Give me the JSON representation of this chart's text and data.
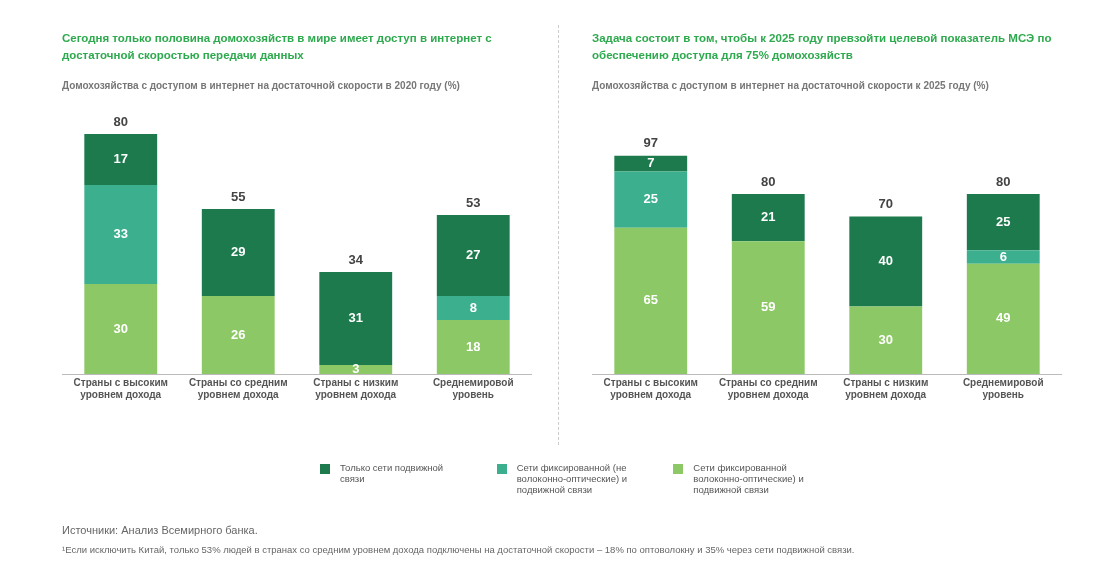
{
  "chart_data": [
    {
      "type": "bar",
      "title": "Сегодня только половина домохозяйств в мире имеет доступ в интернет с достаточной скоростью передачи данных",
      "subtitle": "Домохозяйства с доступом в интернет на достаточной скорости в 2020 году (%)",
      "categories": [
        "Страны с высоким уровнем дохода",
        "Страны со средним уровнем дохода",
        "Страны с низким уровнем дохода",
        "Среднемировой уровень"
      ],
      "stacked": true,
      "data_labels": true,
      "legend": "bottom",
      "grid": false,
      "series": [
        {
          "name": "Сети фиксированной волоконно-оптические) и подвижной связи",
          "color": "#8cc865",
          "values": [
            30,
            26,
            3,
            18
          ]
        },
        {
          "name": "Сети фиксированной (не волоконно-оптические) и подвижной связи",
          "color": "#3caf8e",
          "values": [
            33,
            null,
            null,
            8
          ]
        },
        {
          "name": "Только сети подвижной связи",
          "color": "#1c7a4c",
          "values": [
            17,
            29,
            31,
            27
          ]
        }
      ],
      "totals": [
        "80",
        "55",
        "34",
        "53"
      ],
      "annotations": [
        "Источники: Анализ Всемирного банка.",
        "¹Если исключить Китай, только 53% людей в странах со средним уровнем дохода подключены на достаточной скорости – 18% по оптоволокну и 35% через сети подвижной связи."
      ]
    },
    {
      "type": "bar",
      "title": "Задача состоит в том, чтобы к 2025 году превзойти целевой показатель МСЭ по обеспечению доступа для 75% домохозяйств",
      "subtitle": "Домохозяйства с доступом в интернет на достаточной скорости к 2025 году (%)",
      "categories": [
        "Страны с высоким уровнем дохода",
        "Страны со средним уровнем дохода",
        "Страны с низким уровнем дохода",
        "Среднемировой уровень"
      ],
      "stacked": true,
      "data_labels": true,
      "grid": false,
      "series": [
        {
          "color": "#8cc865",
          "values": [
            65,
            59,
            30,
            49
          ]
        },
        {
          "color": "#3caf8e",
          "values": [
            25,
            null,
            null,
            6
          ]
        },
        {
          "color": "#1c7a4c",
          "values": [
            7,
            21,
            40,
            25
          ]
        }
      ],
      "totals": [
        "97",
        "80",
        "70",
        "80"
      ]
    }
  ]
}
